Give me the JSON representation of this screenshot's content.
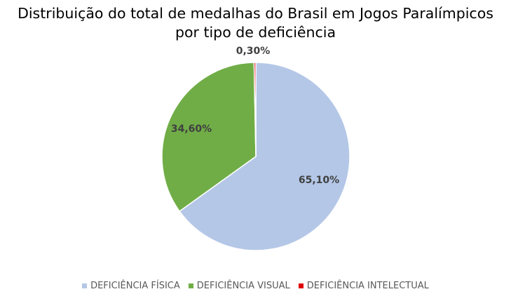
{
  "chart_data": {
    "type": "pie",
    "title_line1": "Distribuição do total de medalhas do Brasil em Jogos Paralímpicos",
    "title_line2": "por tipo de deficiência",
    "legend_position": "bottom",
    "slices": [
      {
        "name": "DEFICIÊNCIA FÍSICA",
        "value": 65.1,
        "label": "65,10%",
        "color": "#b4c7e7"
      },
      {
        "name": "DEFICIÊNCIA VISUAL",
        "value": 34.6,
        "label": "34,60%",
        "color": "#70ad47"
      },
      {
        "name": "DEFICIÊNCIA INTELECTUAL",
        "value": 0.3,
        "label": "0,30%",
        "color": "#e00000"
      }
    ]
  }
}
